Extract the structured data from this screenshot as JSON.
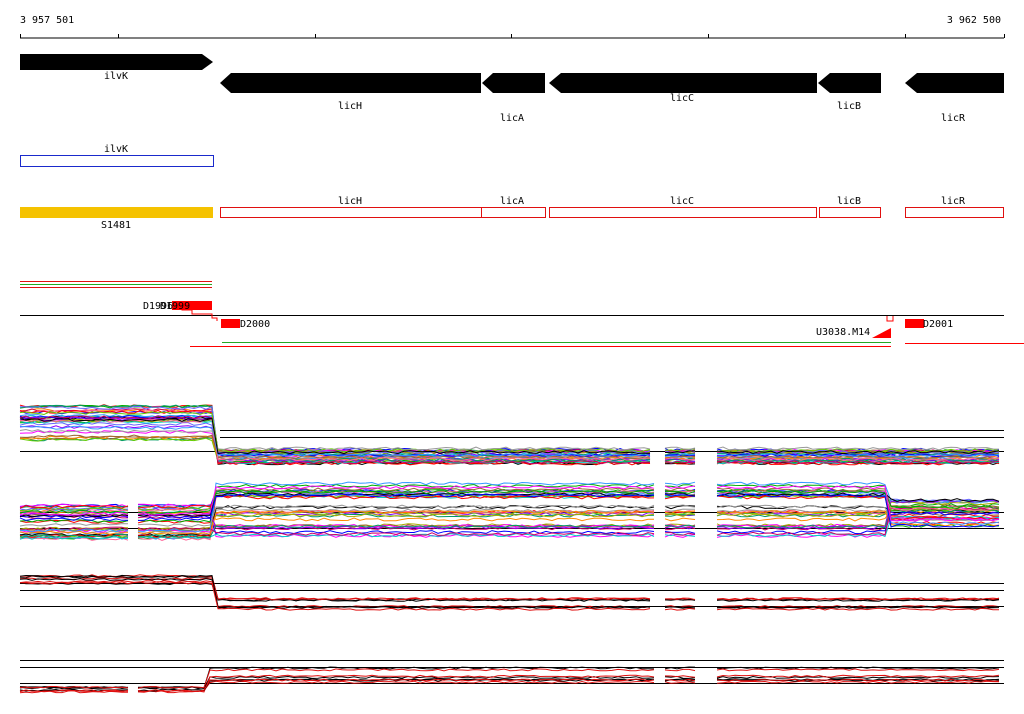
{
  "ruler": {
    "start_label": "3 957 501",
    "end_label": "3 962 500"
  },
  "genes_track": [
    {
      "name": "ilvK",
      "strand": "+"
    },
    {
      "name": "licH",
      "strand": "-"
    },
    {
      "name": "licA",
      "strand": "-"
    },
    {
      "name": "licC",
      "strand": "-"
    },
    {
      "name": "licB",
      "strand": "-"
    },
    {
      "name": "licR",
      "strand": "-"
    }
  ],
  "blue_feature": {
    "name": "ilvK",
    "color": "#1a2acc"
  },
  "red_features": [
    {
      "name": "licH"
    },
    {
      "name": "licA"
    },
    {
      "name": "licC"
    },
    {
      "name": "licB"
    },
    {
      "name": "licR"
    }
  ],
  "yellow_feature": {
    "name": "S1481",
    "color": "#f5c200"
  },
  "segments": [
    {
      "name": "D1996"
    },
    {
      "name": "D1999"
    },
    {
      "name": "D2000"
    },
    {
      "name": "U3038.M14"
    },
    {
      "name": "D2001"
    }
  ],
  "colors": {
    "gene_arrow": "#000000",
    "feature_red": "#e01010",
    "segment_red": "#ff0000",
    "green": "#22aa22"
  }
}
